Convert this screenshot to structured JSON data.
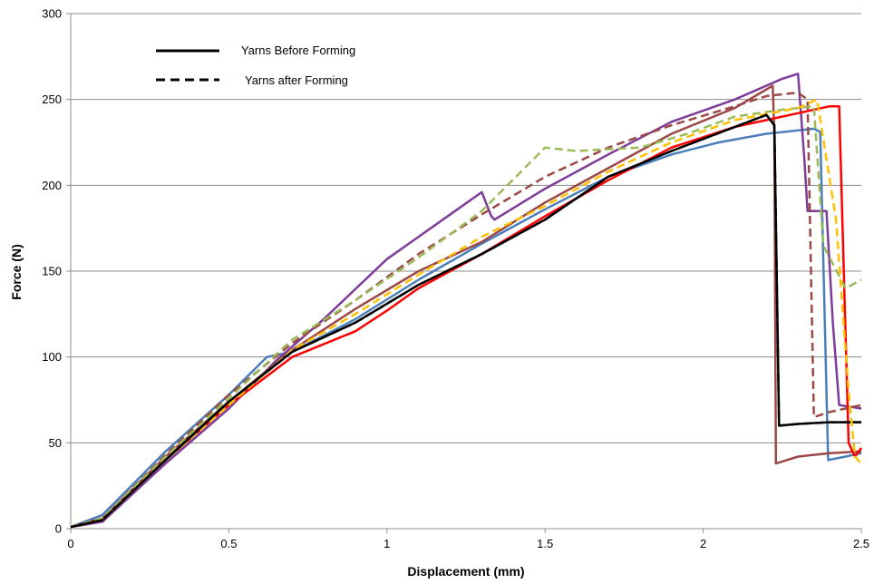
{
  "chart_data": {
    "type": "line",
    "title": "",
    "xlabel": "Displacement (mm)",
    "ylabel": "Force (N)",
    "xlim": [
      0,
      2.5
    ],
    "ylim": [
      0,
      300
    ],
    "xticks": [
      0,
      0.5,
      1,
      1.5,
      2,
      2.5
    ],
    "yticks": [
      0,
      50,
      100,
      150,
      200,
      250,
      300
    ],
    "xtick_labels": [
      "0",
      "0.5",
      "1",
      "1.5",
      "2",
      "2.5"
    ],
    "ytick_labels": [
      "0",
      "50",
      "100",
      "150",
      "200",
      "250",
      "300"
    ],
    "grid": "horizontal",
    "legend_position": "top-left",
    "legend": [
      {
        "label": "Yarns Before Forming",
        "style": "solid"
      },
      {
        "label": "Yarns after Forming",
        "style": "dashed"
      }
    ],
    "series": [
      {
        "style": "solid",
        "color": "#4a7ebb",
        "points": [
          [
            0,
            1
          ],
          [
            0.1,
            8
          ],
          [
            0.3,
            45
          ],
          [
            0.5,
            78
          ],
          [
            0.62,
            100
          ],
          [
            0.7,
            103
          ],
          [
            0.9,
            122
          ],
          [
            1.1,
            145
          ],
          [
            1.3,
            166
          ],
          [
            1.5,
            186
          ],
          [
            1.7,
            205
          ],
          [
            1.9,
            218
          ],
          [
            2.05,
            225
          ],
          [
            2.2,
            230
          ],
          [
            2.35,
            233
          ],
          [
            2.37,
            231
          ],
          [
            2.395,
            40
          ],
          [
            2.45,
            42
          ],
          [
            2.5,
            44
          ]
        ]
      },
      {
        "style": "solid",
        "color": "#7d3c98",
        "points": [
          [
            0,
            1
          ],
          [
            0.1,
            4
          ],
          [
            0.3,
            38
          ],
          [
            0.5,
            70
          ],
          [
            0.65,
            98
          ],
          [
            0.8,
            122
          ],
          [
            1.0,
            157
          ],
          [
            1.1,
            170
          ],
          [
            1.3,
            196
          ],
          [
            1.33,
            182
          ],
          [
            1.34,
            180
          ],
          [
            1.5,
            198
          ],
          [
            1.7,
            218
          ],
          [
            1.9,
            237
          ],
          [
            2.1,
            250
          ],
          [
            2.25,
            262
          ],
          [
            2.3,
            265
          ],
          [
            2.32,
            215
          ],
          [
            2.33,
            185
          ],
          [
            2.39,
            185
          ],
          [
            2.41,
            120
          ],
          [
            2.43,
            72
          ],
          [
            2.5,
            70
          ]
        ]
      },
      {
        "style": "solid",
        "color": "#9b4846",
        "points": [
          [
            0,
            1
          ],
          [
            0.1,
            6
          ],
          [
            0.3,
            42
          ],
          [
            0.5,
            74
          ],
          [
            0.7,
            104
          ],
          [
            0.9,
            128
          ],
          [
            1.1,
            150
          ],
          [
            1.3,
            167
          ],
          [
            1.5,
            190
          ],
          [
            1.7,
            210
          ],
          [
            1.9,
            230
          ],
          [
            2.1,
            245
          ],
          [
            2.22,
            258
          ],
          [
            2.225,
            230
          ],
          [
            2.23,
            38
          ],
          [
            2.3,
            42
          ],
          [
            2.4,
            44
          ],
          [
            2.5,
            45
          ]
        ]
      },
      {
        "style": "solid",
        "color": "#ff0000",
        "points": [
          [
            0,
            1
          ],
          [
            0.1,
            5
          ],
          [
            0.3,
            40
          ],
          [
            0.5,
            72
          ],
          [
            0.7,
            100
          ],
          [
            0.9,
            115
          ],
          [
            1.0,
            127
          ],
          [
            1.1,
            140
          ],
          [
            1.3,
            160
          ],
          [
            1.5,
            182
          ],
          [
            1.7,
            203
          ],
          [
            1.9,
            222
          ],
          [
            2.1,
            234
          ],
          [
            2.3,
            242
          ],
          [
            2.4,
            246
          ],
          [
            2.43,
            246
          ],
          [
            2.46,
            50
          ],
          [
            2.48,
            42
          ],
          [
            2.5,
            47
          ]
        ]
      },
      {
        "style": "solid",
        "color": "#000000",
        "points": [
          [
            0,
            1
          ],
          [
            0.1,
            5
          ],
          [
            0.3,
            40
          ],
          [
            0.5,
            74
          ],
          [
            0.7,
            103
          ],
          [
            0.9,
            120
          ],
          [
            1.1,
            142
          ],
          [
            1.3,
            160
          ],
          [
            1.5,
            180
          ],
          [
            1.7,
            205
          ],
          [
            1.9,
            220
          ],
          [
            2.1,
            234
          ],
          [
            2.2,
            241
          ],
          [
            2.225,
            235
          ],
          [
            2.24,
            60
          ],
          [
            2.3,
            61
          ],
          [
            2.4,
            62
          ],
          [
            2.5,
            62
          ]
        ]
      },
      {
        "style": "dashed",
        "color": "#9b4846",
        "points": [
          [
            0,
            1
          ],
          [
            0.1,
            6
          ],
          [
            0.3,
            43
          ],
          [
            0.5,
            78
          ],
          [
            0.7,
            108
          ],
          [
            0.9,
            133
          ],
          [
            1.1,
            160
          ],
          [
            1.3,
            183
          ],
          [
            1.5,
            205
          ],
          [
            1.7,
            222
          ],
          [
            1.9,
            235
          ],
          [
            2.1,
            246
          ],
          [
            2.2,
            252
          ],
          [
            2.3,
            254
          ],
          [
            2.33,
            250
          ],
          [
            2.35,
            65
          ],
          [
            2.4,
            68
          ],
          [
            2.5,
            72
          ]
        ]
      },
      {
        "style": "dashed",
        "color": "#9bbb59",
        "points": [
          [
            0,
            1
          ],
          [
            0.1,
            6
          ],
          [
            0.3,
            42
          ],
          [
            0.5,
            76
          ],
          [
            0.7,
            110
          ],
          [
            0.9,
            133
          ],
          [
            1.1,
            158
          ],
          [
            1.3,
            185
          ],
          [
            1.5,
            222
          ],
          [
            1.6,
            220
          ],
          [
            1.8,
            222
          ],
          [
            1.95,
            230
          ],
          [
            2.1,
            240
          ],
          [
            2.25,
            244
          ],
          [
            2.35,
            246
          ],
          [
            2.38,
            165
          ],
          [
            2.45,
            140
          ],
          [
            2.5,
            145
          ]
        ]
      },
      {
        "style": "dashed",
        "color": "#ffc000",
        "points": [
          [
            0,
            1
          ],
          [
            0.1,
            5
          ],
          [
            0.3,
            40
          ],
          [
            0.5,
            72
          ],
          [
            0.7,
            104
          ],
          [
            0.9,
            125
          ],
          [
            1.1,
            148
          ],
          [
            1.3,
            170
          ],
          [
            1.5,
            188
          ],
          [
            1.7,
            208
          ],
          [
            1.9,
            225
          ],
          [
            2.1,
            238
          ],
          [
            2.3,
            245
          ],
          [
            2.36,
            250
          ],
          [
            2.42,
            180
          ],
          [
            2.46,
            80
          ],
          [
            2.48,
            42
          ],
          [
            2.5,
            38
          ]
        ]
      },
      {
        "style": "dashed",
        "color": "#000000",
        "points": [
          [
            0,
            1
          ],
          [
            0.1,
            5
          ],
          [
            0.3,
            40
          ],
          [
            0.5,
            74
          ],
          [
            0.7,
            103
          ],
          [
            0.9,
            120
          ],
          [
            1.1,
            142
          ],
          [
            1.3,
            160
          ],
          [
            1.5,
            180
          ],
          [
            1.7,
            205
          ],
          [
            1.9,
            220
          ],
          [
            2.1,
            234
          ],
          [
            2.2,
            241
          ],
          [
            2.225,
            235
          ],
          [
            2.24,
            60
          ],
          [
            2.3,
            61
          ],
          [
            2.4,
            62
          ],
          [
            2.5,
            62
          ]
        ]
      }
    ]
  }
}
